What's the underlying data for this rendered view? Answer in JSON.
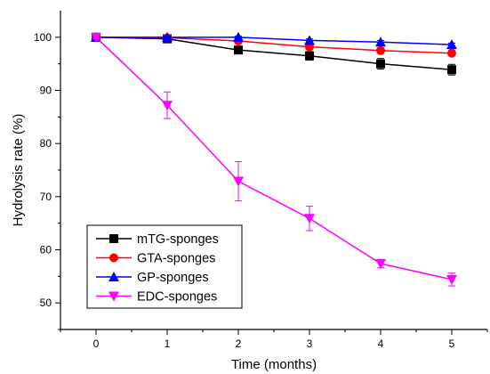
{
  "chart_data": {
    "type": "line",
    "title": "",
    "xlabel": "Time (months)",
    "ylabel": "Hydrolysis rate (%)",
    "x": [
      0,
      1,
      2,
      3,
      4,
      5
    ],
    "xlim": [
      -0.5,
      5.5
    ],
    "ylim": [
      45,
      105
    ],
    "x_ticks": [
      0,
      1,
      2,
      3,
      4,
      5
    ],
    "y_ticks": [
      50,
      60,
      70,
      80,
      90,
      100
    ],
    "grid": false,
    "legend_position": "bottom-left",
    "series": [
      {
        "name": "mTG-sponges",
        "color": "#000000",
        "marker": "square",
        "values": [
          100,
          99.7,
          97.6,
          96.5,
          95.0,
          93.9
        ],
        "errors": [
          0.3,
          0.5,
          0.6,
          0.8,
          1.0,
          1.0
        ]
      },
      {
        "name": "GTA-sponges",
        "color": "#ff0000",
        "marker": "circle",
        "values": [
          100,
          99.9,
          99.3,
          98.2,
          97.5,
          97.0
        ],
        "errors": [
          0.3,
          0.3,
          0.4,
          0.5,
          0.5,
          0.5
        ]
      },
      {
        "name": "GP-sponges",
        "color": "#0000ff",
        "marker": "triangle-up",
        "values": [
          100,
          100,
          100,
          99.4,
          99.1,
          98.6
        ],
        "errors": [
          0.2,
          0.2,
          0.2,
          0.3,
          0.3,
          0.3
        ]
      },
      {
        "name": "EDC-sponges",
        "color": "#ff00ff",
        "marker": "triangle-down",
        "values": [
          100,
          87.2,
          72.9,
          65.9,
          57.4,
          54.4
        ],
        "errors": [
          0.3,
          2.5,
          3.7,
          2.3,
          0.8,
          1.2
        ]
      }
    ]
  }
}
